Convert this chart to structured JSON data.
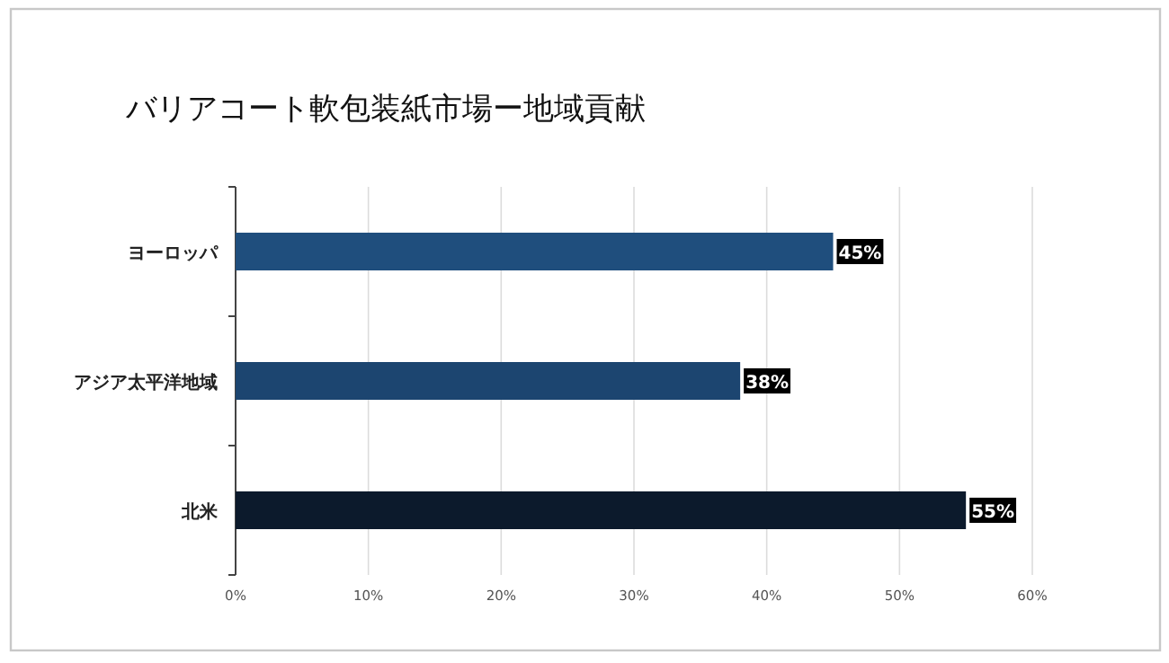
{
  "chart_data": {
    "type": "bar",
    "orientation": "horizontal",
    "title": "バリアコート軟包装紙市場ー地域貢献",
    "categories": [
      "ヨーロッパ",
      "アジア太平洋地域",
      "北米"
    ],
    "values": [
      45,
      38,
      55
    ],
    "colors": [
      "#1f4e7d",
      "#1c4570",
      "#0c1a2c"
    ],
    "value_labels": [
      "45%",
      "38%",
      "55%"
    ],
    "xlim": [
      0,
      60
    ],
    "xticks": [
      {
        "value": 0,
        "label": "0%"
      },
      {
        "value": 10,
        "label": "10%"
      },
      {
        "value": 20,
        "label": "20%"
      },
      {
        "value": 30,
        "label": "30%"
      },
      {
        "value": 40,
        "label": "40%"
      },
      {
        "value": 50,
        "label": "50%"
      },
      {
        "value": 60,
        "label": "60%"
      }
    ],
    "grid": "x"
  }
}
